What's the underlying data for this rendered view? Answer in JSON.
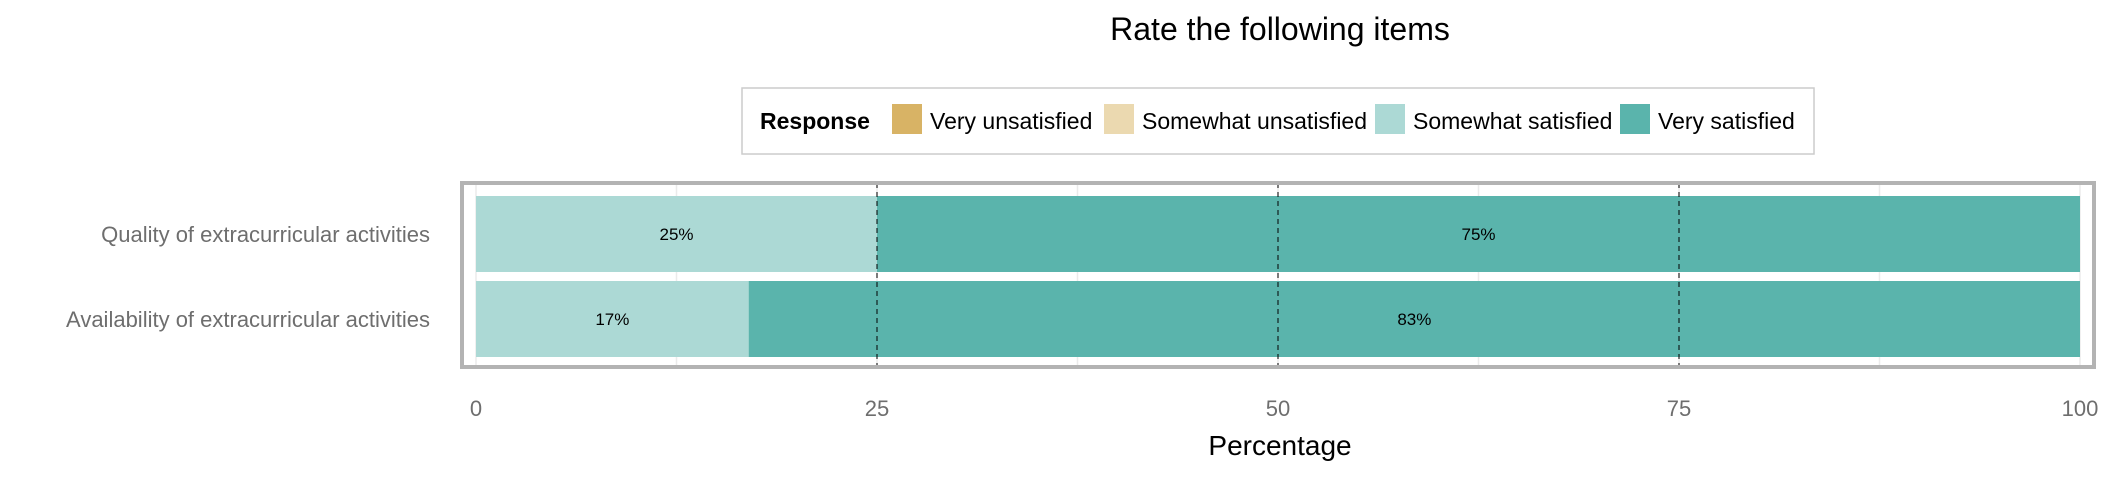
{
  "chart_data": {
    "type": "bar",
    "orientation": "horizontal",
    "stacked": true,
    "title": "Rate the following items",
    "xlabel": "Percentage",
    "ylabel": "",
    "xlim": [
      0,
      100
    ],
    "x_ticks": [
      "0",
      "25",
      "50",
      "75",
      "100"
    ],
    "legend_title": "Response",
    "legend_position": "top",
    "categories": [
      "Quality of extracurricular activities",
      "Availability of extracurricular activities"
    ],
    "series": [
      {
        "name": "Very unsatisfied",
        "color": "#d8b365",
        "values": [
          0,
          0
        ],
        "labels": [
          "",
          ""
        ]
      },
      {
        "name": "Somewhat unsatisfied",
        "color": "#ebd9b0",
        "values": [
          0,
          0
        ],
        "labels": [
          "",
          ""
        ]
      },
      {
        "name": "Somewhat satisfied",
        "color": "#acd9d5",
        "values": [
          25,
          17
        ],
        "labels": [
          "25%",
          "17%"
        ]
      },
      {
        "name": "Very satisfied",
        "color": "#5ab4ac",
        "values": [
          75,
          83
        ],
        "labels": [
          "75%",
          "83%"
        ]
      }
    ],
    "grid": true
  }
}
